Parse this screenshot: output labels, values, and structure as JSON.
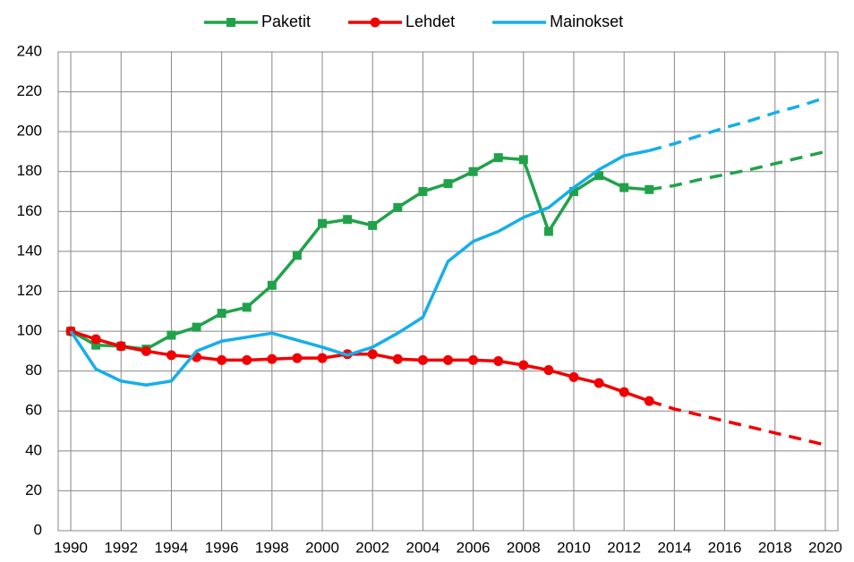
{
  "chart_data": {
    "type": "line",
    "x": [
      1990,
      1991,
      1992,
      1993,
      1994,
      1995,
      1996,
      1997,
      1998,
      1999,
      2000,
      2001,
      2002,
      2003,
      2004,
      2005,
      2006,
      2007,
      2008,
      2009,
      2010,
      2011,
      2012,
      2013,
      2014,
      2015,
      2016,
      2017,
      2018,
      2019,
      2020
    ],
    "series": [
      {
        "name": "Paketit",
        "color": "#21a24a",
        "marker": "square",
        "values": [
          100,
          93,
          92.5,
          91,
          98,
          102,
          109,
          112,
          123,
          138,
          154,
          156,
          153,
          162,
          170,
          174,
          180,
          187,
          186,
          150,
          170,
          178,
          172,
          171,
          null,
          null,
          null,
          null,
          null,
          null,
          null
        ],
        "projection_values": [
          null,
          null,
          null,
          null,
          null,
          null,
          null,
          null,
          null,
          null,
          null,
          null,
          null,
          null,
          null,
          null,
          null,
          null,
          null,
          null,
          null,
          null,
          null,
          171,
          173,
          176,
          178.5,
          181,
          184,
          187,
          190
        ]
      },
      {
        "name": "Lehdet",
        "color": "#f00000",
        "marker": "circle",
        "values": [
          100,
          96,
          92.5,
          90,
          88,
          87,
          85.5,
          85.5,
          86,
          86.5,
          86.5,
          88.5,
          88.5,
          86,
          85.5,
          85.5,
          85.5,
          85,
          83,
          80.5,
          77,
          74,
          69.5,
          65,
          null,
          null,
          null,
          null,
          null,
          null,
          null
        ],
        "projection_values": [
          null,
          null,
          null,
          null,
          null,
          null,
          null,
          null,
          null,
          null,
          null,
          null,
          null,
          null,
          null,
          null,
          null,
          null,
          null,
          null,
          null,
          null,
          null,
          65,
          61,
          58,
          55,
          52,
          49,
          46,
          43
        ]
      },
      {
        "name": "Mainokset",
        "color": "#16aeea",
        "marker": "none",
        "values": [
          100,
          81,
          75,
          73,
          75,
          90,
          95,
          97,
          99,
          95.5,
          92,
          88,
          92,
          99,
          107,
          135,
          145,
          150,
          157,
          162,
          172,
          181,
          188,
          190.5,
          null,
          null,
          null,
          null,
          null,
          null,
          null
        ],
        "projection_values": [
          null,
          null,
          null,
          null,
          null,
          null,
          null,
          null,
          null,
          null,
          null,
          null,
          null,
          null,
          null,
          null,
          null,
          null,
          null,
          null,
          null,
          null,
          null,
          190.5,
          194,
          198,
          202,
          205.5,
          209.5,
          213,
          217
        ]
      }
    ],
    "xlim": [
      1989.5,
      2020.5
    ],
    "xticks": [
      1990,
      1992,
      1994,
      1996,
      1998,
      2000,
      2002,
      2004,
      2006,
      2008,
      2010,
      2012,
      2014,
      2016,
      2018,
      2020
    ],
    "ylim": [
      0,
      240
    ],
    "yticks": [
      0,
      20,
      40,
      60,
      80,
      100,
      120,
      140,
      160,
      180,
      200,
      220,
      240
    ],
    "grid": true,
    "legend": "top"
  }
}
